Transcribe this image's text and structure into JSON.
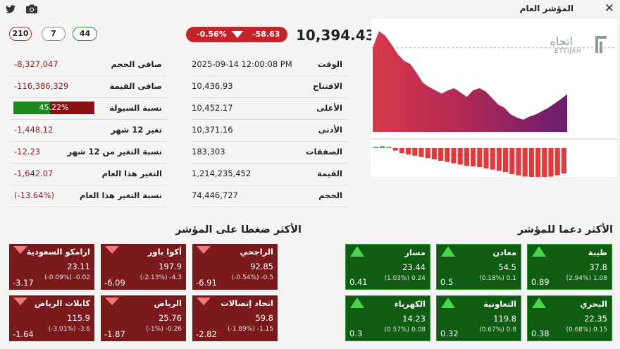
{
  "window_title": "المؤشر العام",
  "icons": {
    "twitter": "twitter-icon",
    "camera": "camera-icon",
    "close": "close-icon"
  },
  "ticks": {
    "declined": "210",
    "unchanged": "7",
    "advanced": "44"
  },
  "index_value": "10,394.43",
  "change": {
    "percent": "-0.56%",
    "points": "-58.63",
    "direction": "down"
  },
  "left_stats": [
    {
      "label": "صافى الحجم",
      "value": "-8,327,047"
    },
    {
      "label": "صافى القيمة",
      "value": "-116,386,329"
    },
    {
      "label": "نسبة السيولة",
      "value": "45.22%",
      "fraction": 0.4522
    },
    {
      "label": "تغير 12 شهر",
      "value": "-1,448.12"
    },
    {
      "label": "نسبة التغير من 12 شهر",
      "value": "-12.23"
    },
    {
      "label": "التغير هذا العام",
      "value": "-1,642.07"
    },
    {
      "label": "نسبة التغير هذا العام",
      "value": "(-13.64%)"
    }
  ],
  "mid_stats": [
    {
      "label": "الوقت",
      "value": "2025-09-14 12:00:08 PM"
    },
    {
      "label": "الافتتاح",
      "value": "10,436.93"
    },
    {
      "label": "الأعلى",
      "value": "10,452.17"
    },
    {
      "label": "الأدنى",
      "value": "10,371.16"
    },
    {
      "label": "الصفقات",
      "value": "183,303"
    },
    {
      "label": "القيمة",
      "value": "1,214,235,452"
    },
    {
      "label": "الحجم",
      "value": "74,446,727"
    }
  ],
  "chart_data": {
    "type": "area",
    "title": "",
    "reference_value": 10436.93,
    "ylim": [
      10360,
      10460
    ],
    "series": [
      {
        "values": [
          10436.93,
          10452.17,
          10448,
          10440,
          10431,
          10425,
          10422,
          10414,
          10405,
          10401,
          10398,
          10395,
          10398,
          10400,
          10396,
          10392,
          10398,
          10400,
          10397,
          10391,
          10385,
          10382,
          10376,
          10373,
          10371.16,
          10374,
          10376,
          10379,
          10382,
          10386,
          10390,
          10394.43
        ]
      }
    ],
    "bars": [
      2,
      3,
      2,
      -4,
      -8,
      -10,
      -12,
      -14,
      -16,
      -18,
      -20,
      -22,
      -24,
      -26,
      -28,
      -29,
      -30,
      -32,
      -34,
      -36,
      -38,
      -41,
      -43,
      -45,
      -46,
      -47,
      -46,
      -45,
      -43,
      -40
    ],
    "watermark": {
      "arabic": "اتجاه",
      "latin": "ETTIJAH"
    }
  },
  "sections": {
    "negative_title": "الأكثر ضغطا على المؤشر",
    "positive_title": "الأكثر دعما للمؤشر"
  },
  "negative_cards": [
    {
      "name": "ارامكو السعودية",
      "price": "23.11",
      "change": "(-0.09%) -0.02",
      "weight": "-3.17"
    },
    {
      "name": "أكوا باور",
      "price": "197.9",
      "change": "(-2.13%) -4.3",
      "weight": "-6.09"
    },
    {
      "name": "الراجحي",
      "price": "92.85",
      "change": "(-0.54%) -0.5",
      "weight": "-6.91"
    },
    {
      "name": "كابلات الرياض",
      "price": "115.9",
      "change": "(-3.01%) -3.6",
      "weight": "-1.64"
    },
    {
      "name": "الرياض",
      "price": "25.76",
      "change": "(-1%) -0.26",
      "weight": "-1.87"
    },
    {
      "name": "اتحاد إتصالات",
      "price": "59.8",
      "change": "(-1.89%) -1.15",
      "weight": "-2.82"
    }
  ],
  "positive_cards": [
    {
      "name": "مسار",
      "price": "23.44",
      "change": "(1.03%) 0.24",
      "weight": "0.41"
    },
    {
      "name": "معادن",
      "price": "54.5",
      "change": "(0.18%) 0.1",
      "weight": "0.5"
    },
    {
      "name": "طيبة",
      "price": "37.8",
      "change": "(2.94%) 1.08",
      "weight": "0.89"
    },
    {
      "name": "الكهرباء",
      "price": "14.23",
      "change": "(0.57%) 0.08",
      "weight": "0.3"
    },
    {
      "name": "التعاونية",
      "price": "119.8",
      "change": "(0.67%) 0.8",
      "weight": "0.32"
    },
    {
      "name": "البحري",
      "price": "22.35",
      "change": "(0.68%) 0.15",
      "weight": "0.38"
    }
  ],
  "colors": {
    "negative": "#7a1a1c",
    "positive": "#0f5c12",
    "pill_red": "#c22429"
  }
}
